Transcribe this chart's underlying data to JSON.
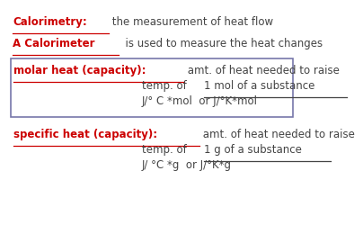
{
  "red": "#cc0000",
  "dark": "#444444",
  "border": "#7777aa",
  "line1_red": "Calorimetry:",
  "line1_black": " the measurement of heat flow",
  "line2_red": "A Calorimeter",
  "line2_black": "  is used to measure the heat changes",
  "box_red": "molar heat (capacity):",
  "box_black1": " amt. of heat needed to raise",
  "box_black2": "temp. of ",
  "box_underline": "1 mol of a substance",
  "box_black3": "J/° C *mol  or J/°K*mol",
  "bot_red": "specific heat (capacity):",
  "bot_black1": " amt. of heat needed to raise",
  "bot_black2": "temp. of ",
  "bot_underline": "1 g of a substance",
  "bot_black3": "J/ °C *g  or J/°K*g",
  "fontsize": 8.5
}
